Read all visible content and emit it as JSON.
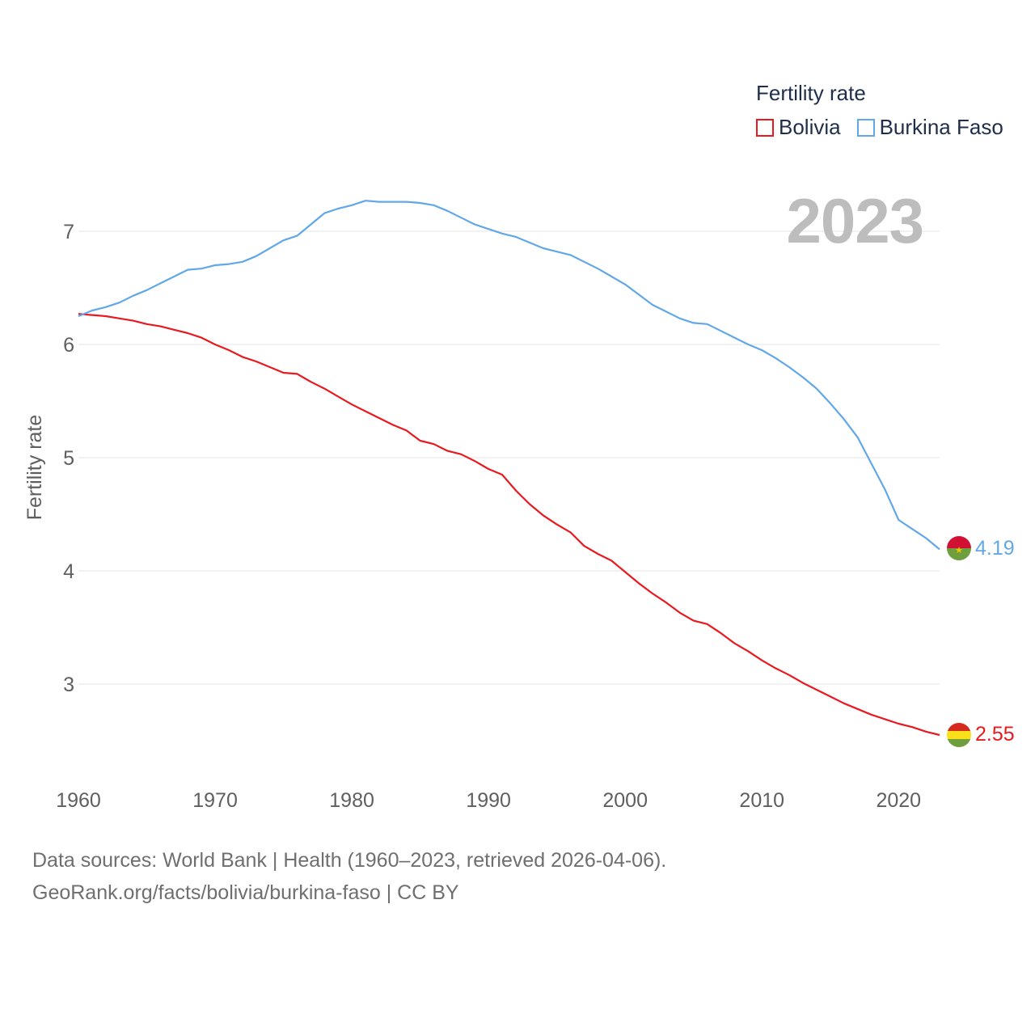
{
  "legend": {
    "title": "Fertility rate",
    "items": [
      {
        "label": "Bolivia",
        "color": "#e8191f"
      },
      {
        "label": "Burkina Faso",
        "color": "#62a8e8"
      }
    ]
  },
  "current_year": "2023",
  "footer": {
    "line1": "Data sources: World Bank | Health (1960–2023, retrieved 2026-04-06).",
    "line2": "GeoRank.org/facts/bolivia/burkina-faso | CC BY"
  },
  "chart_data": {
    "type": "line",
    "title": "Fertility rate",
    "xlabel": "",
    "ylabel": "Fertility rate",
    "xlim": [
      1960,
      2023
    ],
    "ylim": [
      2.3,
      7.5
    ],
    "x_ticks": [
      1960,
      1970,
      1980,
      1990,
      2000,
      2010,
      2020
    ],
    "y_ticks": [
      3,
      4,
      5,
      6,
      7
    ],
    "grid": true,
    "x": [
      1960,
      1961,
      1962,
      1963,
      1964,
      1965,
      1966,
      1967,
      1968,
      1969,
      1970,
      1971,
      1972,
      1973,
      1974,
      1975,
      1976,
      1977,
      1978,
      1979,
      1980,
      1981,
      1982,
      1983,
      1984,
      1985,
      1986,
      1987,
      1988,
      1989,
      1990,
      1991,
      1992,
      1993,
      1994,
      1995,
      1996,
      1997,
      1998,
      1999,
      2000,
      2001,
      2002,
      2003,
      2004,
      2005,
      2006,
      2007,
      2008,
      2009,
      2010,
      2011,
      2012,
      2013,
      2014,
      2015,
      2016,
      2017,
      2018,
      2019,
      2020,
      2021,
      2022,
      2023
    ],
    "series": [
      {
        "name": "Bolivia",
        "color": "#e8191f",
        "end_label": "2.55",
        "values": [
          6.27,
          6.26,
          6.25,
          6.23,
          6.21,
          6.18,
          6.16,
          6.13,
          6.1,
          6.06,
          6.0,
          5.95,
          5.89,
          5.85,
          5.8,
          5.75,
          5.74,
          5.67,
          5.61,
          5.54,
          5.47,
          5.41,
          5.35,
          5.29,
          5.24,
          5.15,
          5.12,
          5.06,
          5.03,
          4.97,
          4.9,
          4.85,
          4.71,
          4.59,
          4.49,
          4.41,
          4.34,
          4.22,
          4.15,
          4.09,
          3.99,
          3.89,
          3.8,
          3.72,
          3.63,
          3.56,
          3.53,
          3.45,
          3.36,
          3.29,
          3.21,
          3.14,
          3.08,
          3.01,
          2.95,
          2.89,
          2.83,
          2.78,
          2.73,
          2.69,
          2.65,
          2.62,
          2.58,
          2.55
        ]
      },
      {
        "name": "Burkina Faso",
        "color": "#62a8e8",
        "end_label": "4.19",
        "values": [
          6.25,
          6.3,
          6.33,
          6.37,
          6.43,
          6.48,
          6.54,
          6.6,
          6.66,
          6.67,
          6.7,
          6.71,
          6.73,
          6.78,
          6.85,
          6.92,
          6.96,
          7.06,
          7.16,
          7.2,
          7.23,
          7.27,
          7.26,
          7.26,
          7.26,
          7.25,
          7.23,
          7.18,
          7.12,
          7.06,
          7.02,
          6.98,
          6.95,
          6.9,
          6.85,
          6.82,
          6.79,
          6.73,
          6.67,
          6.6,
          6.53,
          6.44,
          6.35,
          6.29,
          6.23,
          6.19,
          6.18,
          6.12,
          6.06,
          6.0,
          5.95,
          5.88,
          5.8,
          5.71,
          5.61,
          5.48,
          5.34,
          5.18,
          4.95,
          4.72,
          4.45,
          4.37,
          4.29,
          4.19
        ]
      }
    ]
  }
}
